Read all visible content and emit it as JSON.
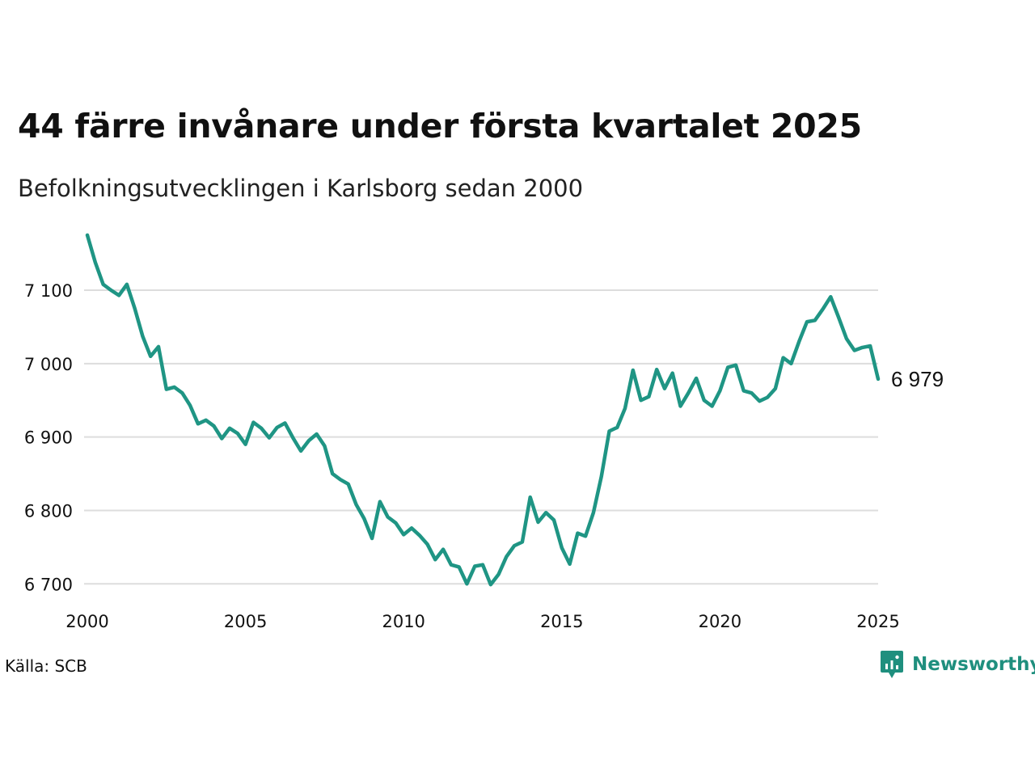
{
  "header": {
    "title": "44 färre invånare under första kvartalet 2025",
    "subtitle": "Befolkningsutvecklingen i Karlsborg sedan 2000"
  },
  "footer": {
    "source": "Källa: SCB",
    "brand": "Newsworthy",
    "brand_color": "#1f8f7e"
  },
  "colors": {
    "line": "#1f9584",
    "grid": "#dddddd",
    "text": "#111111"
  },
  "chart_data": {
    "type": "line",
    "title": "44 färre invånare under första kvartalet 2025",
    "subtitle": "Befolkningsutvecklingen i Karlsborg sedan 2000",
    "xlabel": "",
    "ylabel": "",
    "xlim": [
      2000,
      2025
    ],
    "ylim": [
      6686,
      7176
    ],
    "x_ticks": [
      2000,
      2005,
      2010,
      2015,
      2020,
      2025
    ],
    "x_tick_labels": [
      "2000",
      "2005",
      "2010",
      "2015",
      "2020",
      "2025"
    ],
    "y_ticks": [
      6700,
      6800,
      6900,
      7000,
      7100
    ],
    "y_tick_labels": [
      "6 700",
      "6 800",
      "6 900",
      "7 000",
      "7 100"
    ],
    "grid": "horizontal",
    "end_label": "6 979",
    "series": [
      {
        "x": [
          2000.0,
          2000.25,
          2000.5,
          2000.75,
          2001.0,
          2001.25,
          2001.5,
          2001.75,
          2002.0,
          2002.25,
          2002.5,
          2002.75,
          2003.0,
          2003.25,
          2003.5,
          2003.75,
          2004.0,
          2004.25,
          2004.5,
          2004.75,
          2005.0,
          2005.25,
          2005.5,
          2005.75,
          2006.0,
          2006.25,
          2006.5,
          2006.75,
          2007.0,
          2007.25,
          2007.5,
          2007.75,
          2008.0,
          2008.25,
          2008.5,
          2008.75,
          2009.0,
          2009.25,
          2009.5,
          2009.75,
          2010.0,
          2010.25,
          2010.5,
          2010.75,
          2011.0,
          2011.25,
          2011.5,
          2011.75,
          2012.0,
          2012.25,
          2012.5,
          2012.75,
          2013.0,
          2013.25,
          2013.5,
          2013.75,
          2014.0,
          2014.25,
          2014.5,
          2014.75,
          2015.0,
          2015.25,
          2015.5,
          2015.75,
          2016.0,
          2016.25,
          2016.5,
          2016.75,
          2017.0,
          2017.25,
          2017.5,
          2017.75,
          2018.0,
          2018.25,
          2018.5,
          2018.75,
          2019.0,
          2019.25,
          2019.5,
          2019.75,
          2020.0,
          2020.25,
          2020.5,
          2020.75,
          2021.0,
          2021.25,
          2021.5,
          2021.75,
          2022.0,
          2022.25,
          2022.5,
          2022.75,
          2023.0,
          2023.25,
          2023.5,
          2023.75,
          2024.0,
          2024.25,
          2024.5,
          2024.75,
          2025.0
        ],
        "values": [
          7175,
          7138,
          7108,
          7100,
          7093,
          7108,
          7075,
          7037,
          7010,
          7023,
          6965,
          6968,
          6960,
          6943,
          6918,
          6923,
          6915,
          6898,
          6912,
          6905,
          6890,
          6920,
          6912,
          6899,
          6913,
          6919,
          6899,
          6881,
          6895,
          6904,
          6888,
          6850,
          6842,
          6836,
          6808,
          6789,
          6762,
          6812,
          6791,
          6783,
          6767,
          6776,
          6766,
          6754,
          6733,
          6747,
          6726,
          6723,
          6700,
          6724,
          6726,
          6699,
          6713,
          6737,
          6752,
          6757,
          6818,
          6784,
          6797,
          6787,
          6749,
          6727,
          6769,
          6765,
          6797,
          6846,
          6908,
          6913,
          6939,
          6991,
          6950,
          6955,
          6992,
          6966,
          6987,
          6942,
          6960,
          6980,
          6950,
          6942,
          6963,
          6995,
          6998,
          6963,
          6960,
          6949,
          6954,
          6966,
          7008,
          7000,
          7030,
          7057,
          7059,
          7074,
          7091,
          7063,
          7034,
          7018,
          7022,
          7024,
          6979
        ]
      }
    ]
  }
}
